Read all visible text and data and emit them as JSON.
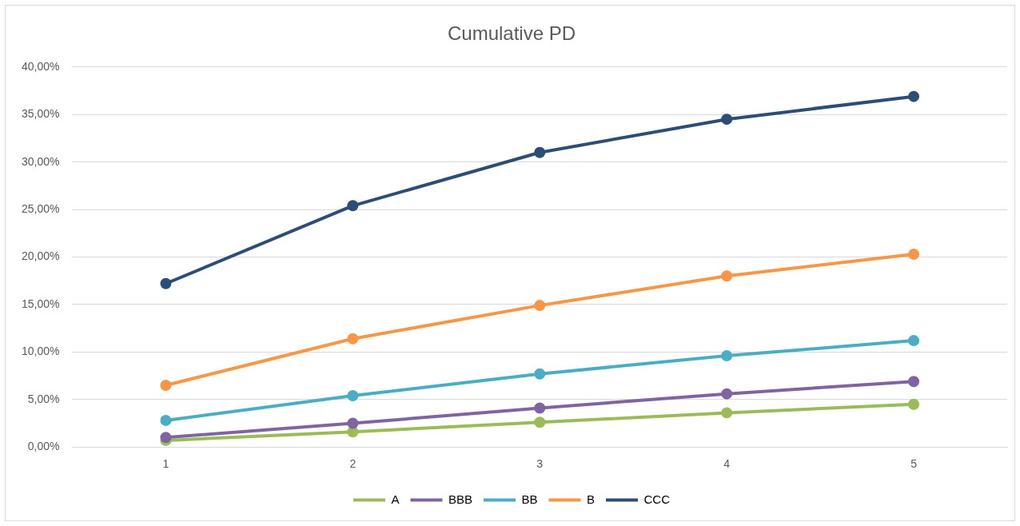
{
  "chart_data": {
    "type": "line",
    "title": "Cumulative PD",
    "categories": [
      "1",
      "2",
      "3",
      "4",
      "5"
    ],
    "series": [
      {
        "name": "A",
        "color": "#9bbb59",
        "values": [
          0.7,
          1.6,
          2.6,
          3.6,
          4.5
        ]
      },
      {
        "name": "BBB",
        "color": "#8064a2",
        "values": [
          1.0,
          2.5,
          4.1,
          5.6,
          6.9
        ]
      },
      {
        "name": "BB",
        "color": "#4bacc6",
        "values": [
          2.8,
          5.4,
          7.7,
          9.6,
          11.2
        ]
      },
      {
        "name": "B",
        "color": "#f79646",
        "values": [
          6.5,
          11.4,
          14.9,
          18.0,
          20.3
        ]
      },
      {
        "name": "CCC",
        "color": "#2c4d75",
        "values": [
          17.2,
          25.4,
          31.0,
          34.5,
          36.9
        ]
      }
    ],
    "ylim": [
      0,
      40
    ],
    "yticks": [
      {
        "value": 0,
        "label": "0,00%"
      },
      {
        "value": 5,
        "label": "5,00%"
      },
      {
        "value": 10,
        "label": "10,00%"
      },
      {
        "value": 15,
        "label": "15,00%"
      },
      {
        "value": 20,
        "label": "20,00%"
      },
      {
        "value": 25,
        "label": "25,00%"
      },
      {
        "value": 30,
        "label": "30,00%"
      },
      {
        "value": 35,
        "label": "35,00%"
      },
      {
        "value": 40,
        "label": "40,00%"
      }
    ],
    "grid": "y",
    "legend": "bottom",
    "marker": "circle",
    "line_style": "solid"
  }
}
